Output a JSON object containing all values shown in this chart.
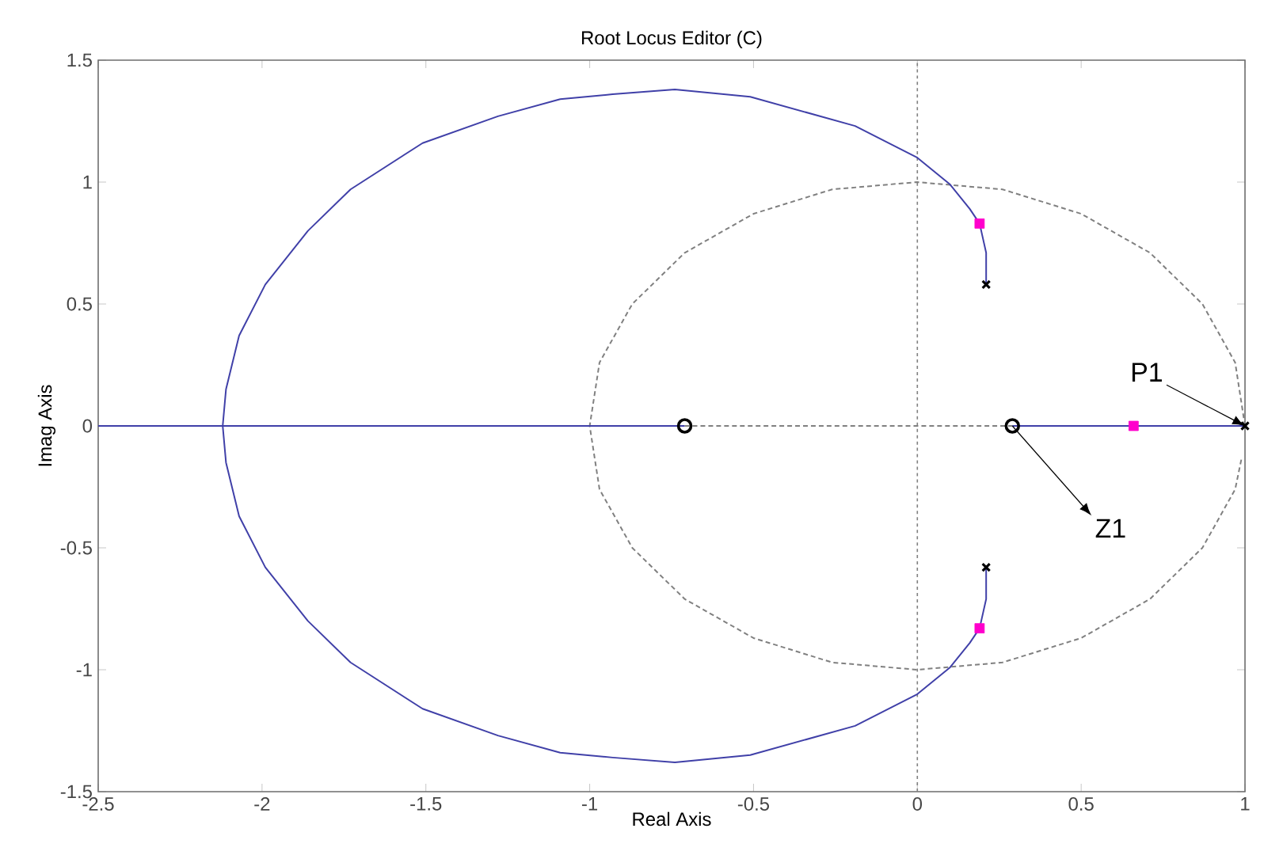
{
  "chart_data": {
    "type": "line",
    "title": "Root Locus Editor (C)",
    "xlabel": "Real Axis",
    "ylabel": "Imag Axis",
    "xlim": [
      -2.5,
      1
    ],
    "ylim": [
      -1.5,
      1.5
    ],
    "xticks": [
      -2.5,
      -2,
      -1.5,
      -1,
      -0.5,
      0,
      0.5,
      1
    ],
    "yticks": [
      -1.5,
      -1,
      -0.5,
      0,
      0.5,
      1,
      1.5
    ],
    "grid": false,
    "ref_lines": [
      {
        "axis": "x",
        "value": 0,
        "color": "#808080",
        "line_style": "dotted"
      }
    ],
    "series": [
      {
        "color": "#808080",
        "line_style": "dashed",
        "marker": "none",
        "x": [
          1,
          0.97,
          0.87,
          0.71,
          0.5,
          0.26,
          0,
          -0.26,
          -0.5,
          -0.71,
          -0.87,
          -0.97,
          -1,
          -0.97,
          -0.87,
          -0.71,
          -0.5,
          -0.26,
          0,
          0.26,
          0.5,
          0.71,
          0.87,
          0.97,
          0.99
        ],
        "values": [
          0,
          0.26,
          0.5,
          0.71,
          0.87,
          0.97,
          1,
          0.97,
          0.87,
          0.71,
          0.5,
          0.26,
          0,
          -0.26,
          -0.5,
          -0.71,
          -0.87,
          -0.97,
          -1,
          -0.97,
          -0.87,
          -0.71,
          -0.5,
          -0.26,
          -0.13
        ]
      },
      {
        "color": "#808080",
        "line_style": "dashed",
        "marker": "none",
        "x": [
          -0.71,
          0.29
        ],
        "values": [
          0,
          0
        ]
      },
      {
        "color": "#4040a8",
        "line_style": "solid",
        "marker": "none",
        "x": [
          -2.5,
          -0.71
        ],
        "values": [
          0,
          0
        ]
      },
      {
        "color": "#4040a8",
        "line_style": "solid",
        "marker": "none",
        "x": [
          0.29,
          1
        ],
        "values": [
          0,
          0
        ]
      },
      {
        "color": "#4040a8",
        "line_style": "solid",
        "marker": "none",
        "x": [
          0.21,
          0.21,
          0.19,
          0.16,
          0.1,
          0,
          -0.19,
          -0.51,
          -0.74,
          -0.93,
          -1.09,
          -1.28,
          -1.51,
          -1.73,
          -1.86,
          -1.99,
          -2.07,
          -2.11,
          -2.12,
          -2.11,
          -2.07,
          -1.99,
          -1.86,
          -1.73,
          -1.51,
          -1.28,
          -1.09,
          -0.93,
          -0.74,
          -0.51,
          -0.19,
          0,
          0.1,
          0.16,
          0.19,
          0.21,
          0.21
        ],
        "values": [
          0.58,
          0.71,
          0.83,
          0.89,
          0.99,
          1.1,
          1.23,
          1.35,
          1.38,
          1.36,
          1.34,
          1.27,
          1.16,
          0.97,
          0.8,
          0.58,
          0.37,
          0.15,
          0,
          -0.15,
          -0.37,
          -0.58,
          -0.8,
          -0.97,
          -1.16,
          -1.27,
          -1.34,
          -1.36,
          -1.38,
          -1.35,
          -1.23,
          -1.1,
          -0.99,
          -0.89,
          -0.83,
          -0.71,
          -0.58
        ]
      },
      {
        "type": "scatter",
        "color": "#000000",
        "marker": "cross",
        "x": [
          0.21,
          0.21,
          1
        ],
        "values": [
          0.58,
          -0.58,
          0
        ]
      },
      {
        "type": "scatter",
        "color": "#000000",
        "marker": "circle",
        "x": [
          -0.71,
          0.29
        ],
        "values": [
          0,
          0
        ]
      },
      {
        "type": "scatter",
        "color": "#ff00cc",
        "marker": "square",
        "x": [
          0.19,
          0.19,
          0.66
        ],
        "values": [
          0.83,
          -0.83,
          0
        ]
      }
    ],
    "annotations": [
      {
        "text": "P1",
        "x": 1,
        "y": 0
      },
      {
        "text": "Z1",
        "x": 0.29,
        "y": 0
      }
    ]
  }
}
